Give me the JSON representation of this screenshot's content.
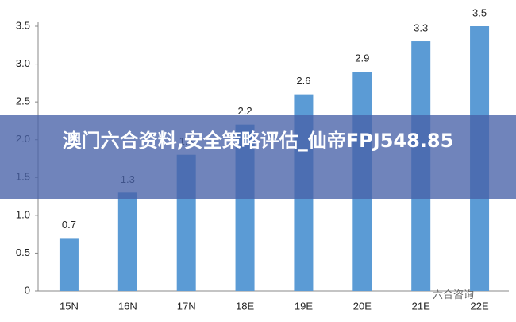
{
  "chart_data": {
    "type": "bar",
    "categories": [
      "15N",
      "16N",
      "17N",
      "18E",
      "19E",
      "20E",
      "21E",
      "22E"
    ],
    "values": [
      0.7,
      1.3,
      1.8,
      2.2,
      2.6,
      2.9,
      3.3,
      3.5
    ],
    "color": "#5b9bd5",
    "ylim": [
      0,
      3.5
    ],
    "yticks": [
      0,
      0.5,
      {
        "value": 1,
        "label": "1.0"
      },
      1.5,
      {
        "value": 2,
        "label": "2.0"
      },
      2.5,
      {
        "value": 3,
        "label": "3.0"
      },
      3.5
    ],
    "grid": false
  },
  "banner": {
    "text": "澳门六合资料,安全策略评估_仙帝FPJ548.85"
  },
  "watermark": {
    "text": "六合咨询"
  }
}
